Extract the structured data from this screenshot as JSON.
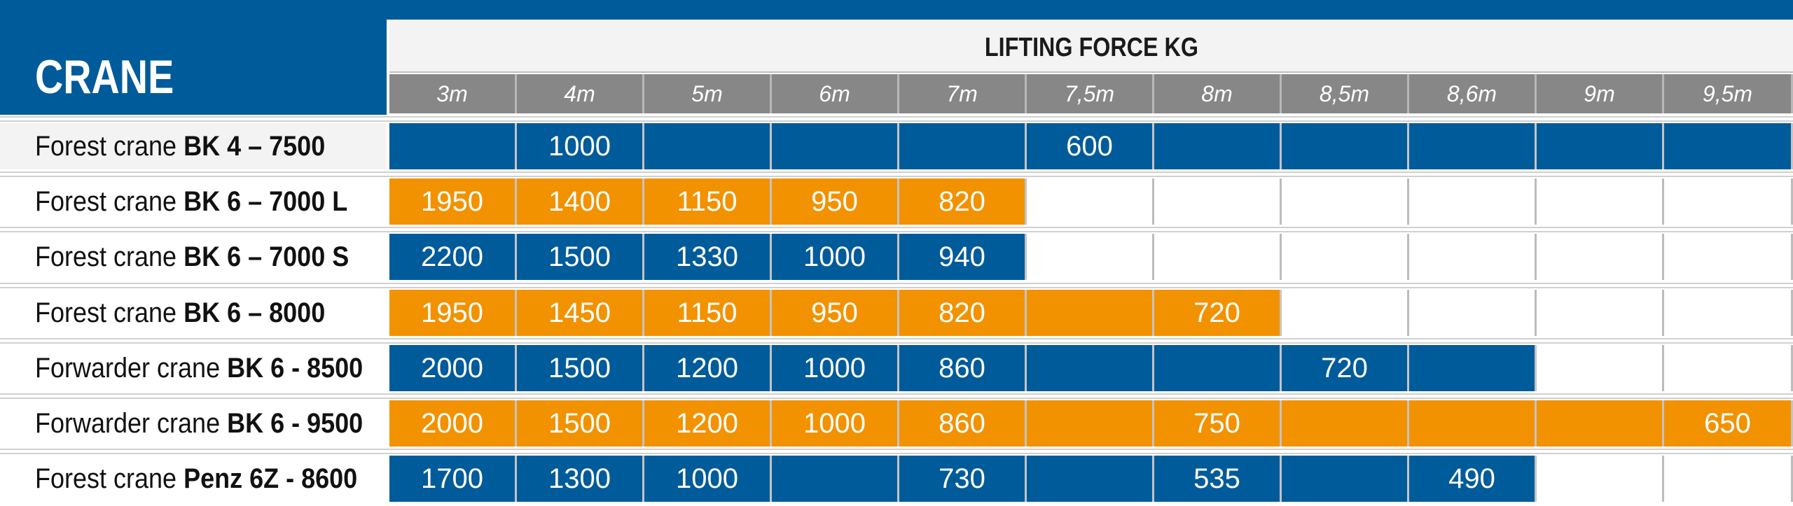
{
  "chart_data": {
    "type": "table",
    "title": "LIFTING FORCE KG",
    "row_header": "CRANE",
    "columns": [
      "3m",
      "4m",
      "5m",
      "6m",
      "7m",
      "7,5m",
      "8m",
      "8,5m",
      "8,6m",
      "9m",
      "9,5m"
    ],
    "rows": [
      {
        "prefix": "Forest crane",
        "model": "BK 4 – 7500",
        "color": "#005b9a",
        "filled_columns": 11,
        "values": [
          "",
          "1000",
          "",
          "",
          "",
          "600",
          "",
          "",
          "",
          "",
          ""
        ]
      },
      {
        "prefix": "Forest crane",
        "model": "BK 6 – 7000 L",
        "color": "#f29200",
        "filled_columns": 5,
        "values": [
          "1950",
          "1400",
          "1150",
          "950",
          "820",
          "",
          "",
          "",
          "",
          "",
          ""
        ]
      },
      {
        "prefix": "Forest crane",
        "model": "BK 6 – 7000 S",
        "color": "#005b9a",
        "filled_columns": 5,
        "values": [
          "2200",
          "1500",
          "1330",
          "1000",
          "940",
          "",
          "",
          "",
          "",
          "",
          ""
        ]
      },
      {
        "prefix": "Forest crane",
        "model": "BK 6 – 8000",
        "color": "#f29200",
        "filled_columns": 7,
        "values": [
          "1950",
          "1450",
          "1150",
          "950",
          "820",
          "",
          "720",
          "",
          "",
          "",
          ""
        ]
      },
      {
        "prefix": "Forwarder crane",
        "model": "BK 6 - 8500",
        "color": "#005b9a",
        "filled_columns": 9,
        "values": [
          "2000",
          "1500",
          "1200",
          "1000",
          "860",
          "",
          "",
          "720",
          "",
          "",
          ""
        ]
      },
      {
        "prefix": "Forwarder crane",
        "model": "BK 6 - 9500",
        "color": "#f29200",
        "filled_columns": 11,
        "values": [
          "2000",
          "1500",
          "1200",
          "1000",
          "860",
          "",
          "750",
          "",
          "",
          "",
          "650"
        ]
      },
      {
        "prefix": "Forest crane",
        "model": "Penz 6Z - 8600",
        "color": "#005b9a",
        "filled_columns": 9,
        "values": [
          "1700",
          "1300",
          "1000",
          "",
          "730",
          "",
          "535",
          "",
          "490",
          "",
          ""
        ]
      }
    ]
  },
  "colors": {
    "blue": "#005b9a",
    "orange": "#f29200",
    "gray_header": "#878787"
  }
}
